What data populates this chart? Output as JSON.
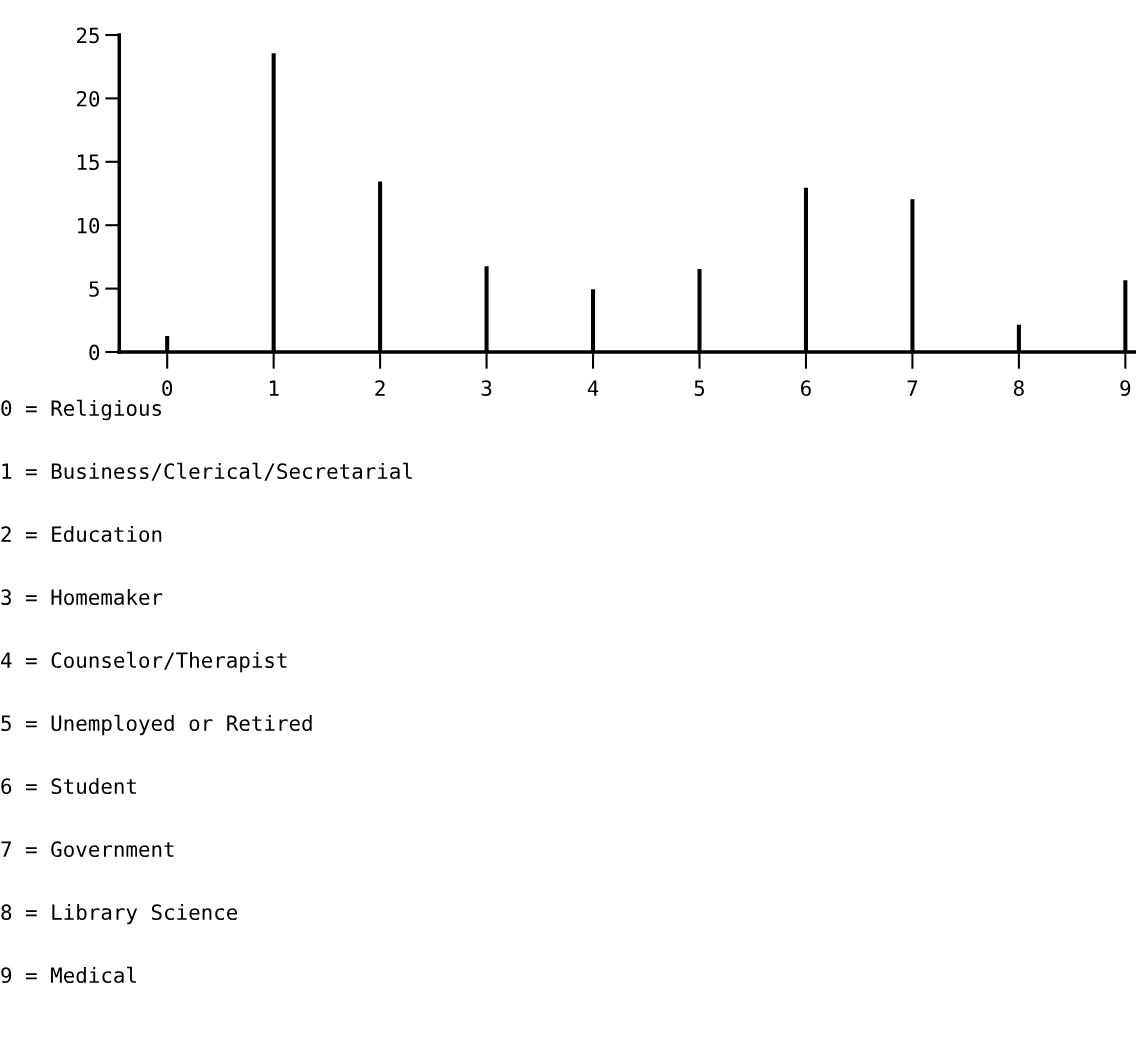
{
  "chart_data": {
    "type": "bar",
    "categories": [
      "0",
      "1",
      "2",
      "3",
      "4",
      "5",
      "6",
      "7",
      "8",
      "9"
    ],
    "values": [
      1.2,
      23.5,
      13.4,
      6.7,
      4.9,
      6.5,
      12.9,
      12.0,
      2.1,
      5.6
    ],
    "color": "#000000",
    "ylim": [
      0,
      25
    ],
    "yticks": [
      0,
      5,
      10,
      15,
      20,
      25
    ],
    "grid": false,
    "annotations": [
      "0 = Religious",
      "1 = Business/Clerical/Secretarial",
      "2 = Education",
      "3 = Homemaker",
      "4 = Counselor/Therapist",
      "5 = Unemployed or Retired",
      "6 = Student",
      "7 = Government",
      "8 = Library Science",
      "9 = Medical"
    ]
  }
}
